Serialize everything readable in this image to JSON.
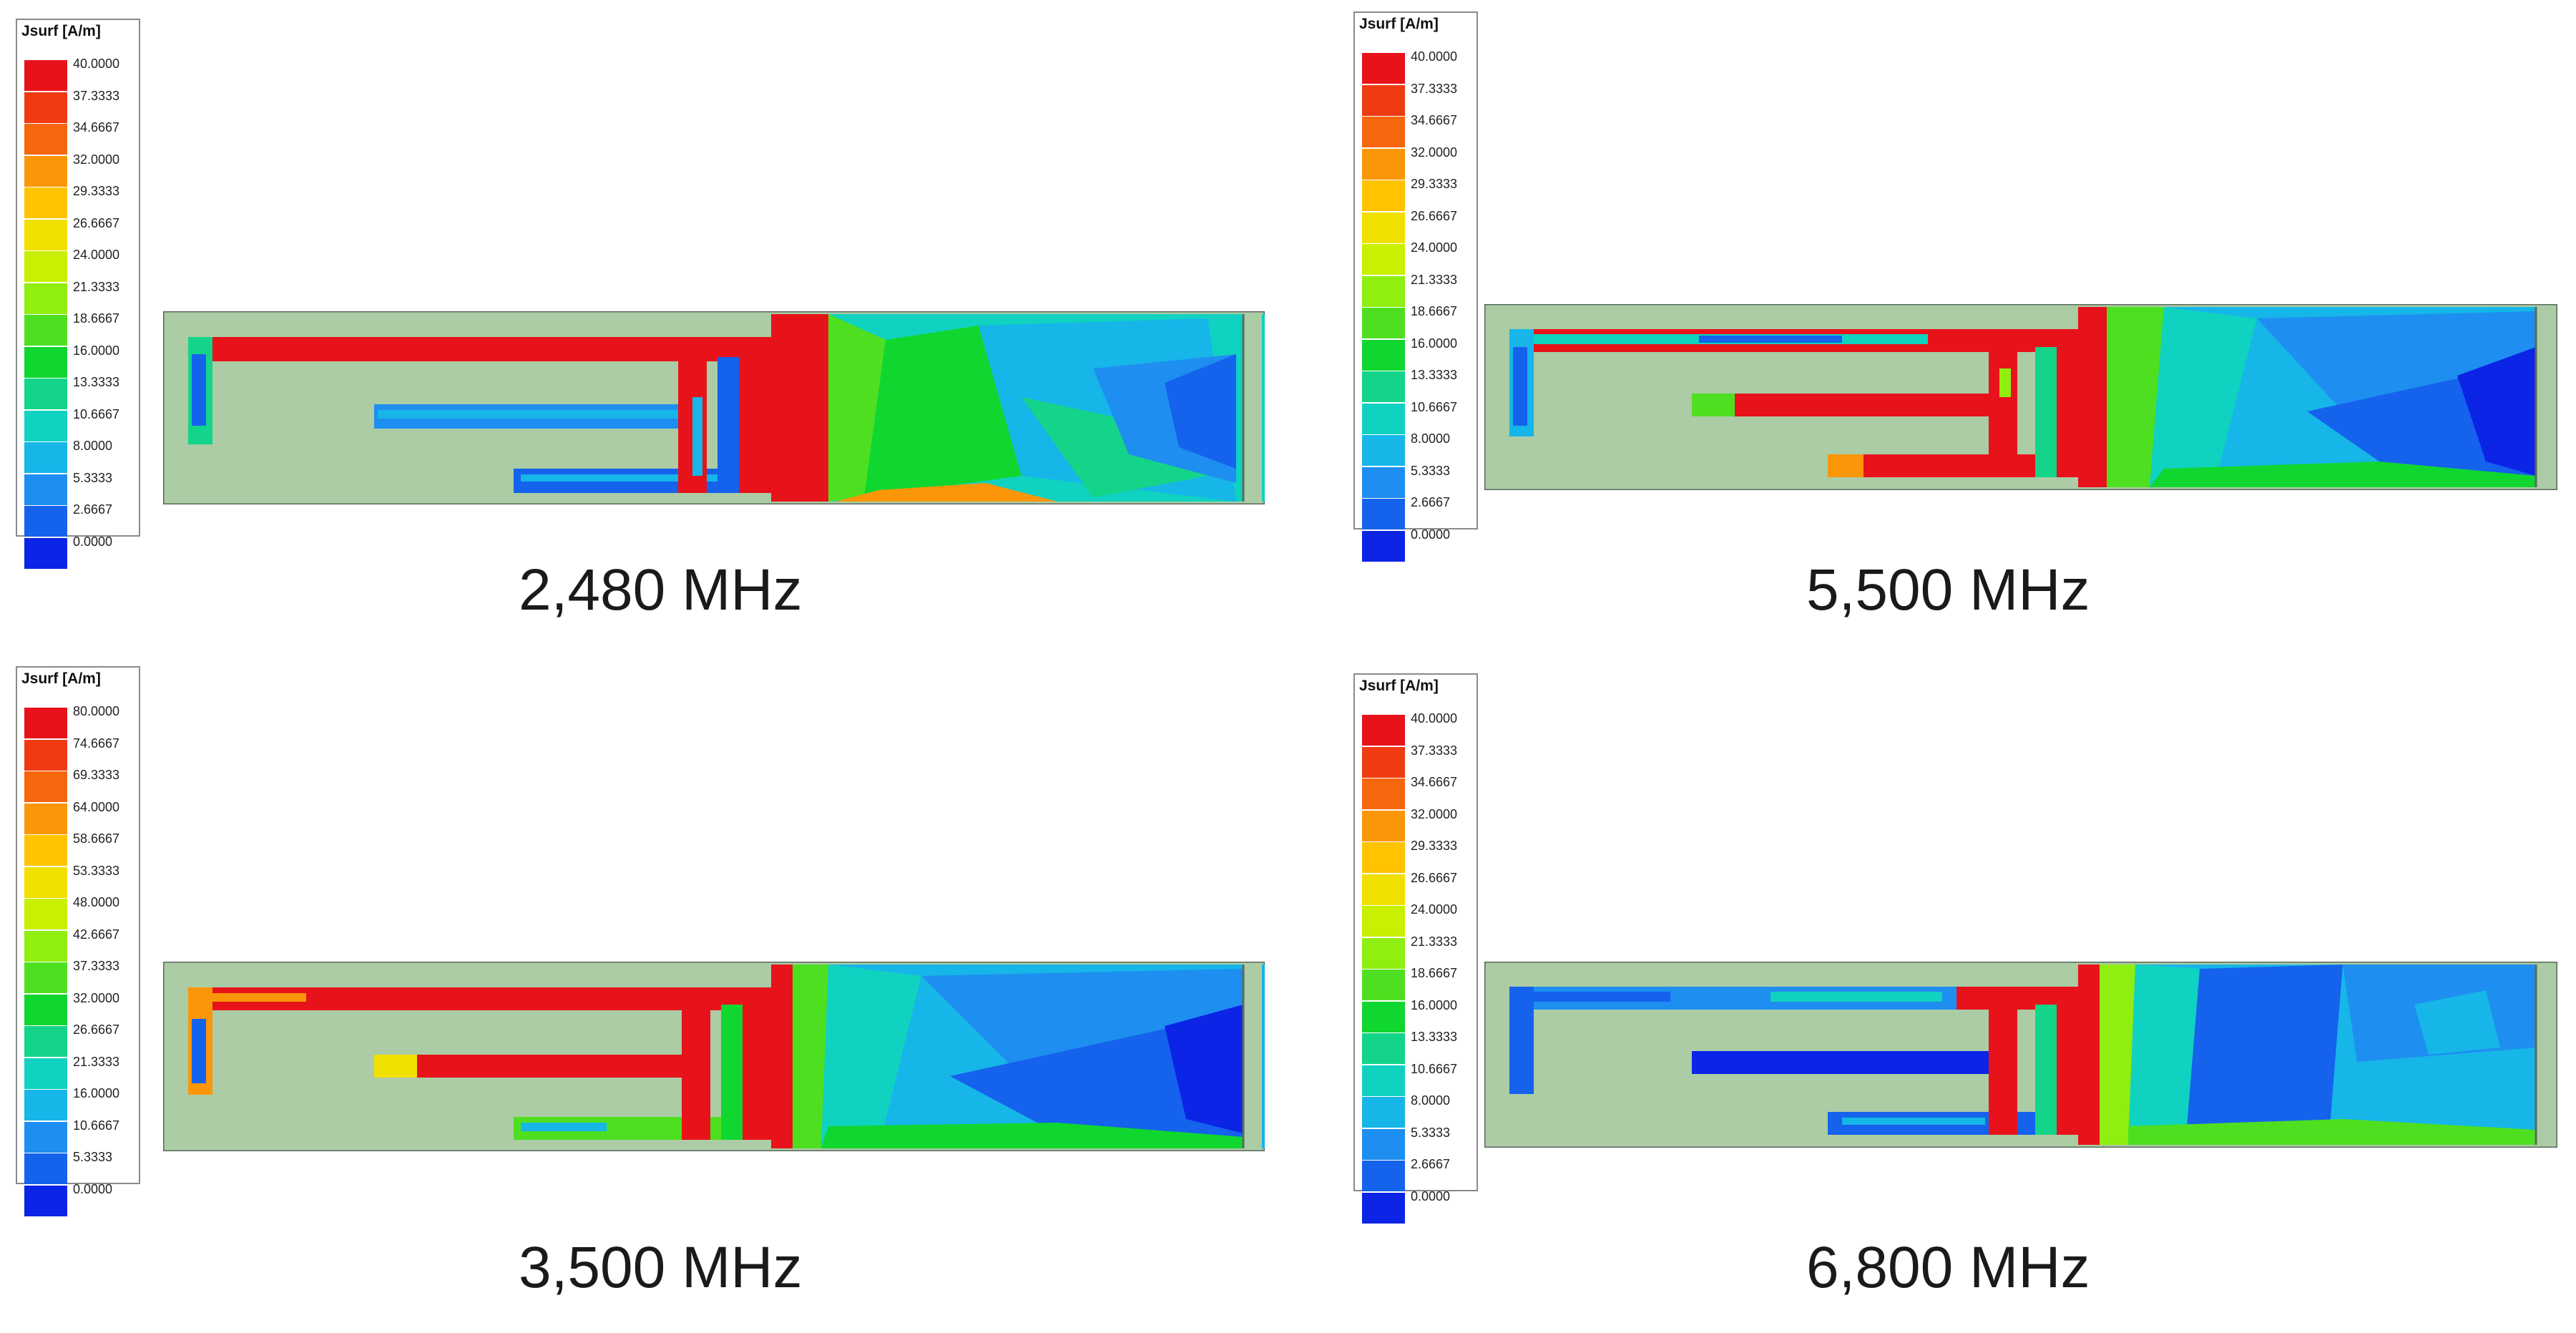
{
  "panels": [
    {
      "caption": "2,480 MHz",
      "legend_title": "Jsurf [A/m]",
      "ticks": [
        "40.0000",
        "37.3333",
        "34.6667",
        "32.0000",
        "29.3333",
        "26.6667",
        "24.0000",
        "21.3333",
        "18.6667",
        "16.0000",
        "13.3333",
        "10.6667",
        "8.0000",
        "5.3333",
        "2.6667",
        "0.0000"
      ]
    },
    {
      "caption": "5,500 MHz",
      "legend_title": "Jsurf [A/m]",
      "ticks": [
        "40.0000",
        "37.3333",
        "34.6667",
        "32.0000",
        "29.3333",
        "26.6667",
        "24.0000",
        "21.3333",
        "18.6667",
        "16.0000",
        "13.3333",
        "10.6667",
        "8.0000",
        "5.3333",
        "2.6667",
        "0.0000"
      ]
    },
    {
      "caption": "3,500 MHz",
      "legend_title": "Jsurf [A/m]",
      "ticks": [
        "80.0000",
        "74.6667",
        "69.3333",
        "64.0000",
        "58.6667",
        "53.3333",
        "48.0000",
        "42.6667",
        "37.3333",
        "32.0000",
        "26.6667",
        "21.3333",
        "16.0000",
        "10.6667",
        "5.3333",
        "0.0000"
      ]
    },
    {
      "caption": "6,800 MHz",
      "legend_title": "Jsurf [A/m]",
      "ticks": [
        "40.0000",
        "37.3333",
        "34.6667",
        "32.0000",
        "29.3333",
        "26.6667",
        "24.0000",
        "21.3333",
        "18.6667",
        "16.0000",
        "13.3333",
        "10.6667",
        "8.0000",
        "5.3333",
        "2.6667",
        "0.0000"
      ]
    }
  ],
  "colors": {
    "scale": [
      "#e8121b",
      "#ef3a12",
      "#f5660d",
      "#fb9609",
      "#ffc300",
      "#f0e000",
      "#c8f000",
      "#90ee10",
      "#4ee020",
      "#10d630",
      "#14d48a",
      "#10d2c0",
      "#16b6e8",
      "#1e8ef0",
      "#1562ec",
      "#0b24e6"
    ],
    "substrate": "#abcca5",
    "outline": "#5a6a5a"
  }
}
